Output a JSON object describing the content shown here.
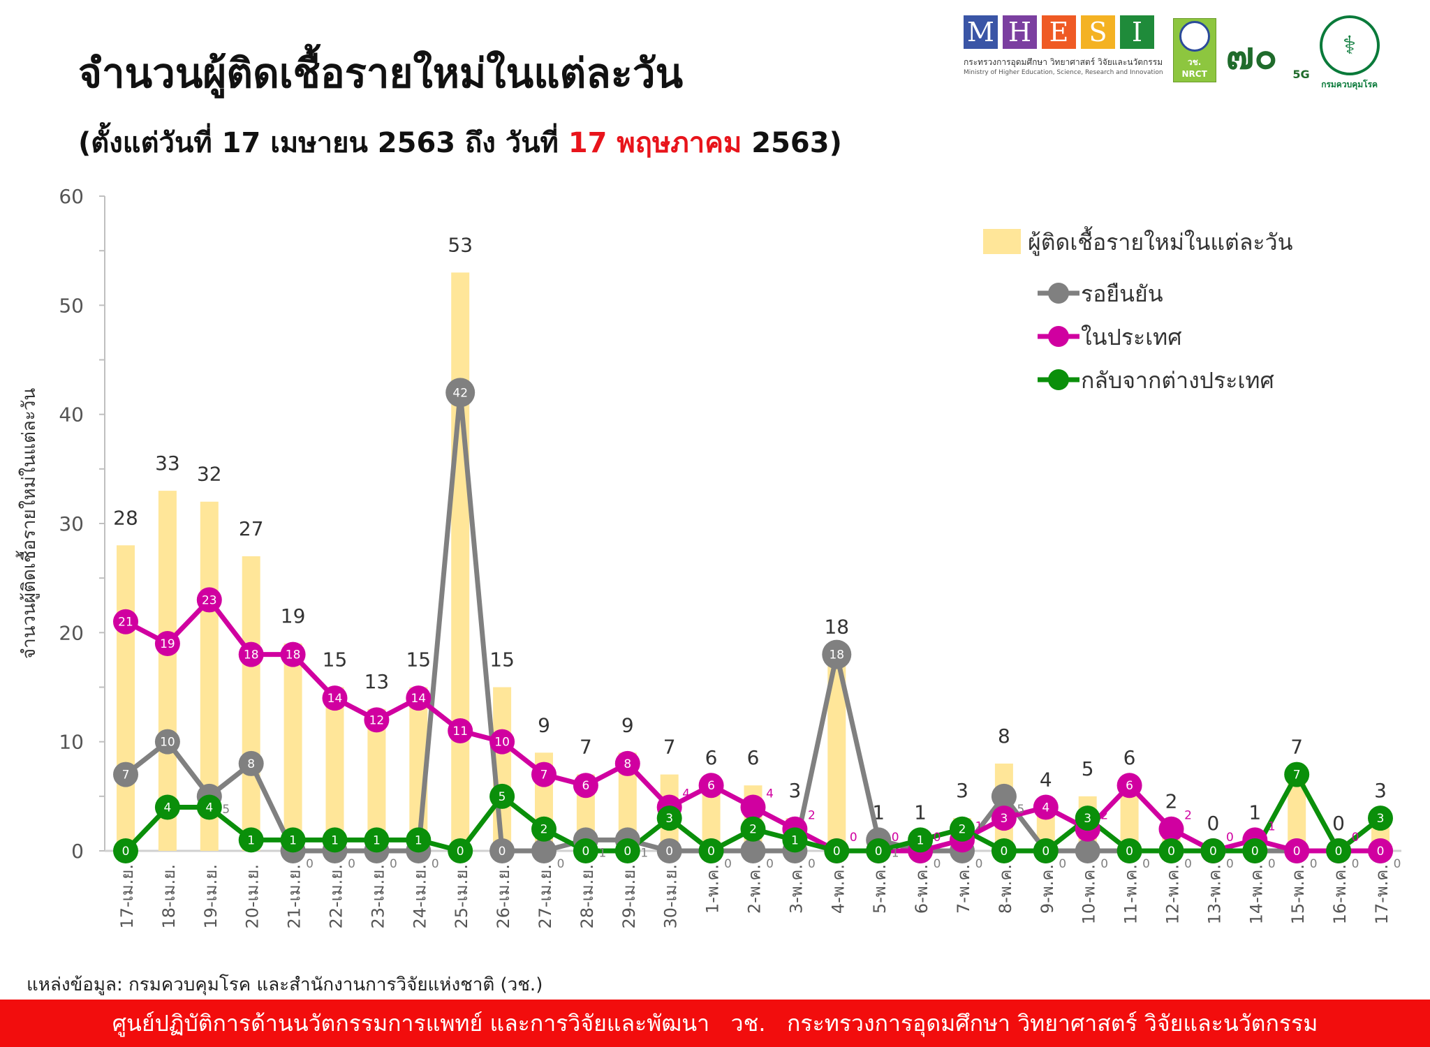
{
  "header": {
    "title": "จำนวนผู้ติดเชื้อรายใหม่ในแต่ละวัน",
    "subtitle_prefix": "(ตั้งแต่วันที่ 17 เมษายน 2563 ถึง วันที่ ",
    "subtitle_highlight": "17 พฤษภาคม",
    "subtitle_suffix": " 2563)"
  },
  "logos": {
    "mhesi_letters": [
      "M",
      "H",
      "E",
      "S",
      "I"
    ],
    "mhesi_th": "กระทรวงการอุดมศึกษา วิทยาศาสตร์ วิจัยและนวัตกรรม",
    "mhesi_en": "Ministry of Higher Education, Science, Research and Innovation",
    "nrct_th": "วช.",
    "nrct_en": "NRCT",
    "anniversary": "๗๐",
    "anniversary_suffix": "5G",
    "moph_label": "กรมควบคุมโรค",
    "colors": {
      "M": "#3a55a6",
      "H": "#7b3fa0",
      "E": "#ef5a24",
      "S": "#f4b223",
      "I": "#1f8b3a"
    }
  },
  "chart_data": {
    "type": "bar+line",
    "ylabel": "จำนวนผู้ติดเชื้อรายใหม่ในแต่ละวัน",
    "ylim": [
      0,
      60
    ],
    "yticks": [
      0,
      10,
      20,
      30,
      40,
      50,
      60
    ],
    "categories": [
      "17-เม.ย.",
      "18-เม.ย.",
      "19-เม.ย.",
      "20-เม.ย.",
      "21-เม.ย.",
      "22-เม.ย.",
      "23-เม.ย.",
      "24-เม.ย.",
      "25-เม.ย.",
      "26-เม.ย.",
      "27-เม.ย.",
      "28-เม.ย.",
      "29-เม.ย.",
      "30-เม.ย.",
      "1-พ.ค.",
      "2-พ.ค.",
      "3-พ.ค.",
      "4-พ.ค.",
      "5-พ.ค.",
      "6-พ.ค.",
      "7-พ.ค.",
      "8-พ.ค.",
      "9-พ.ค.",
      "10-พ.ค.",
      "11-พ.ค.",
      "12-พ.ค.",
      "13-พ.ค.",
      "14-พ.ค.",
      "15-พ.ค.",
      "16-พ.ค.",
      "17-พ.ค."
    ],
    "bars": {
      "name": "ผู้ติดเชื้อรายใหม่ในแต่ละวัน",
      "color": "#ffe699",
      "values": [
        28,
        33,
        32,
        27,
        19,
        15,
        13,
        15,
        53,
        15,
        9,
        7,
        9,
        7,
        6,
        6,
        3,
        18,
        1,
        1,
        3,
        8,
        4,
        5,
        6,
        2,
        0,
        1,
        7,
        0,
        3
      ]
    },
    "series": [
      {
        "name": "รอยืนยัน",
        "color": "#808080",
        "values": [
          7,
          10,
          5,
          8,
          0,
          0,
          0,
          0,
          42,
          0,
          0,
          1,
          1,
          0,
          0,
          0,
          0,
          18,
          1,
          0,
          0,
          5,
          0,
          0,
          0,
          0,
          0,
          0,
          0,
          0,
          0
        ]
      },
      {
        "name": "ในประเทศ",
        "color": "#d000a0",
        "values": [
          21,
          19,
          23,
          18,
          18,
          14,
          12,
          14,
          11,
          10,
          7,
          6,
          8,
          4,
          6,
          4,
          2,
          0,
          0,
          0,
          1,
          3,
          4,
          2,
          6,
          2,
          0,
          1,
          0,
          0,
          0
        ]
      },
      {
        "name": "กลับจากต่างประเทศ",
        "color": "#0a8f0a",
        "values": [
          0,
          4,
          4,
          1,
          1,
          1,
          1,
          1,
          0,
          5,
          2,
          0,
          0,
          3,
          0,
          2,
          1,
          0,
          0,
          1,
          2,
          0,
          0,
          3,
          0,
          0,
          0,
          0,
          7,
          0,
          3
        ]
      }
    ],
    "legend": "top-right"
  },
  "source": "แหล่งข้อมูล: กรมควบคุมโรค และสำนักงานการวิจัยแห่งชาติ (วช.)",
  "footer": "ศูนย์ปฏิบัติการด้านนวัตกรรมการแพทย์ และการวิจัยและพัฒนา   วช.   กระทรวงการอุดมศึกษา วิทยาศาสตร์ วิจัยและนวัตกรรม"
}
